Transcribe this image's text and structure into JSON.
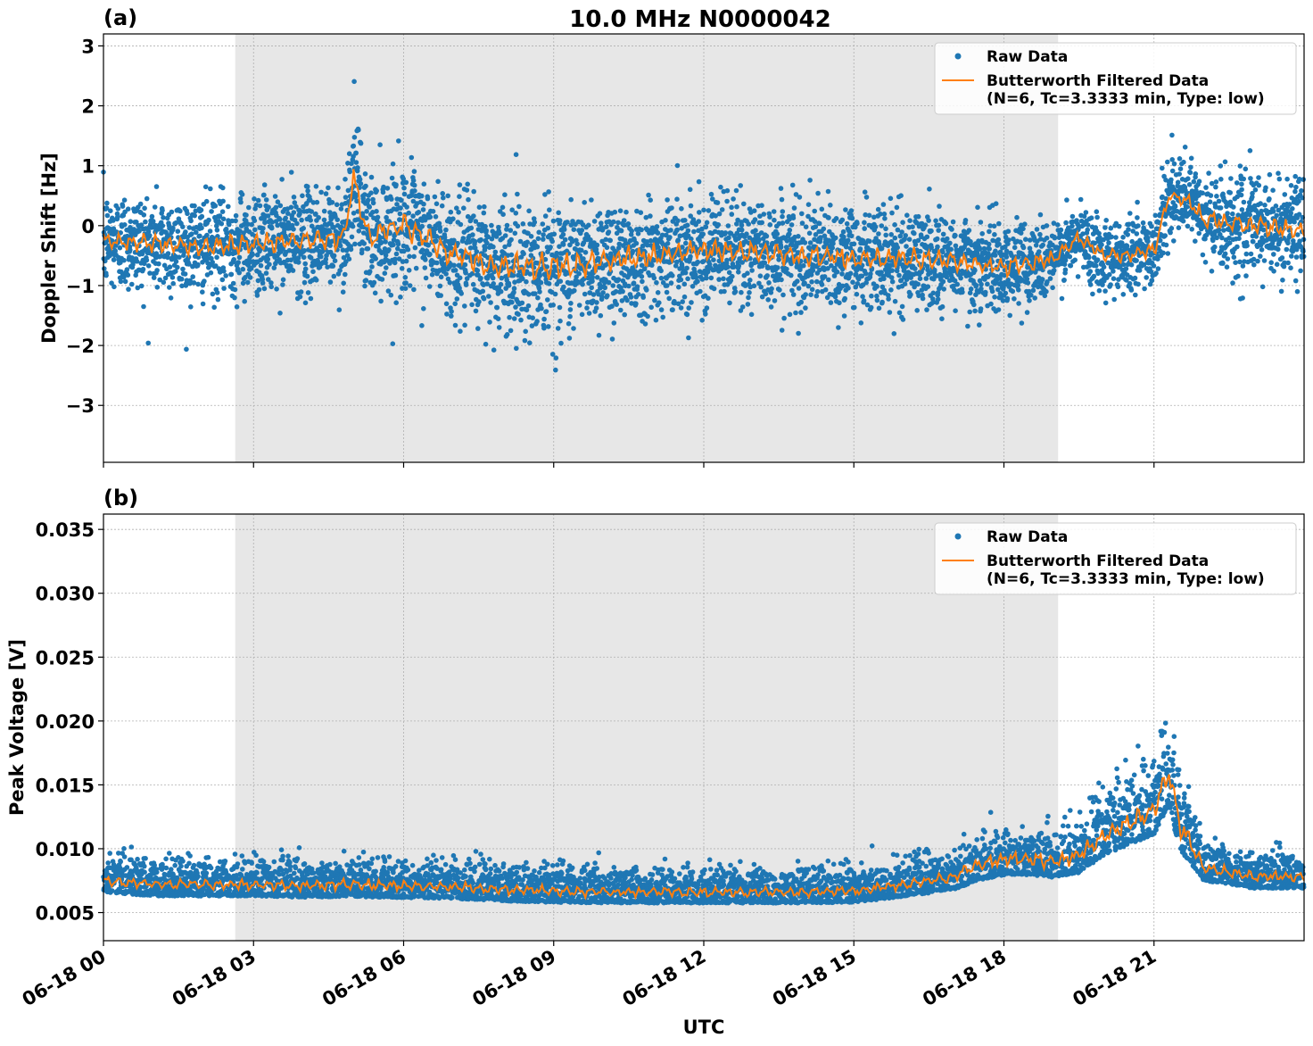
{
  "figure": {
    "title": "10.0 MHz N0000042",
    "xlabel": "UTC"
  },
  "chart_data": [
    {
      "type": "scatter",
      "panel_label": "(a)",
      "ylabel": "Doppler Shift [Hz]",
      "xlim": [
        "06-18 00:00",
        "06-19 00:00"
      ],
      "ylim": [
        -3.95,
        3.2
      ],
      "yticks": [
        -3,
        -2,
        -1,
        0,
        1,
        2,
        3
      ],
      "ytick_labels": [
        "−3",
        "−2",
        "−1",
        "0",
        "1",
        "2",
        "3"
      ],
      "grid": true,
      "legend_position": "top-right",
      "shaded_region": [
        "06-18 02:38",
        "06-18 19:05"
      ],
      "series": [
        {
          "name": "Raw Data",
          "kind": "points",
          "color": "#1f77b4",
          "x_hours": [
            0,
            1,
            2,
            3,
            4,
            4.8,
            5.0,
            5.3,
            6,
            7,
            8,
            9,
            10,
            11,
            12,
            13,
            14,
            15,
            16,
            17,
            18,
            19,
            19.5,
            20,
            20.5,
            21,
            21.3,
            21.7,
            22,
            23,
            24
          ],
          "center": [
            -0.25,
            -0.3,
            -0.35,
            -0.3,
            -0.25,
            -0.2,
            0.8,
            -0.2,
            0.0,
            -0.5,
            -0.7,
            -0.7,
            -0.6,
            -0.5,
            -0.4,
            -0.45,
            -0.5,
            -0.55,
            -0.55,
            -0.6,
            -0.7,
            -0.55,
            -0.2,
            -0.5,
            -0.5,
            -0.4,
            0.5,
            0.4,
            0.1,
            0.0,
            -0.1
          ],
          "spread": [
            0.75,
            0.75,
            0.75,
            0.75,
            0.75,
            0.8,
            1.0,
            0.9,
            0.9,
            0.9,
            1.0,
            1.0,
            0.9,
            0.85,
            0.8,
            0.8,
            0.8,
            0.8,
            0.75,
            0.75,
            0.65,
            0.55,
            0.5,
            0.55,
            0.6,
            0.6,
            0.5,
            0.6,
            0.7,
            0.75,
            0.75
          ]
        },
        {
          "name": "Butterworth Filtered Data\n(N=6, Tc=3.3333 min, Type: low)",
          "kind": "line",
          "color": "#ff7f0e",
          "x_hours": [
            0,
            1,
            2,
            3,
            4,
            4.8,
            5.0,
            5.3,
            6,
            7,
            8,
            9,
            10,
            11,
            12,
            13,
            14,
            15,
            16,
            17,
            18,
            19,
            19.5,
            20,
            20.5,
            21,
            21.3,
            21.7,
            22,
            23,
            24
          ],
          "values": [
            -0.25,
            -0.3,
            -0.35,
            -0.3,
            -0.25,
            -0.2,
            0.8,
            -0.2,
            0.0,
            -0.5,
            -0.7,
            -0.7,
            -0.6,
            -0.5,
            -0.4,
            -0.45,
            -0.5,
            -0.55,
            -0.55,
            -0.6,
            -0.7,
            -0.55,
            -0.2,
            -0.5,
            -0.5,
            -0.4,
            0.5,
            0.4,
            0.1,
            0.0,
            -0.1
          ]
        }
      ]
    },
    {
      "type": "scatter",
      "panel_label": "(b)",
      "ylabel": "Peak Voltage [V]",
      "xlim": [
        "06-18 00:00",
        "06-19 00:00"
      ],
      "ylim": [
        0.0028,
        0.0362
      ],
      "yticks": [
        0.005,
        0.01,
        0.015,
        0.02,
        0.025,
        0.03,
        0.035
      ],
      "ytick_labels": [
        "0.005",
        "0.010",
        "0.015",
        "0.020",
        "0.025",
        "0.030",
        "0.035"
      ],
      "grid": true,
      "legend_position": "top-right",
      "shaded_region": [
        "06-18 02:38",
        "06-18 19:05"
      ],
      "series": [
        {
          "name": "Raw Data",
          "kind": "points",
          "color": "#1f77b4",
          "x_hours": [
            0,
            1,
            2,
            3,
            4,
            5,
            6,
            7,
            8,
            9,
            10,
            11,
            12,
            13,
            14,
            15,
            16,
            17,
            17.5,
            18,
            18.5,
            19,
            19.5,
            20,
            20.5,
            21,
            21.3,
            21.5,
            22,
            23,
            24
          ],
          "center": [
            0.0075,
            0.0072,
            0.0072,
            0.0072,
            0.0071,
            0.0072,
            0.0071,
            0.007,
            0.0068,
            0.0067,
            0.0066,
            0.0066,
            0.0066,
            0.0066,
            0.0066,
            0.0067,
            0.0072,
            0.0078,
            0.0088,
            0.0092,
            0.0092,
            0.009,
            0.0095,
            0.011,
            0.012,
            0.013,
            0.016,
            0.012,
            0.0085,
            0.0078,
            0.0078
          ],
          "spread": [
            0.0018,
            0.0018,
            0.0018,
            0.0018,
            0.0018,
            0.0019,
            0.0019,
            0.0018,
            0.0018,
            0.0018,
            0.0017,
            0.0017,
            0.0017,
            0.0017,
            0.0017,
            0.0018,
            0.0019,
            0.002,
            0.0025,
            0.0025,
            0.0025,
            0.0025,
            0.0028,
            0.003,
            0.0033,
            0.0038,
            0.005,
            0.004,
            0.002,
            0.0018,
            0.0018
          ]
        },
        {
          "name": "Butterworth Filtered Data\n(N=6, Tc=3.3333 min, Type: low)",
          "kind": "line",
          "color": "#ff7f0e",
          "x_hours": [
            0,
            1,
            2,
            3,
            4,
            5,
            6,
            7,
            8,
            9,
            10,
            11,
            12,
            13,
            14,
            15,
            16,
            17,
            17.5,
            18,
            18.5,
            19,
            19.5,
            20,
            20.5,
            21,
            21.3,
            21.5,
            22,
            23,
            24
          ],
          "values": [
            0.0075,
            0.0072,
            0.0072,
            0.0072,
            0.0071,
            0.0072,
            0.0071,
            0.007,
            0.0068,
            0.0067,
            0.0066,
            0.0066,
            0.0066,
            0.0066,
            0.0066,
            0.0067,
            0.0072,
            0.0078,
            0.0088,
            0.0092,
            0.0092,
            0.009,
            0.0095,
            0.011,
            0.012,
            0.013,
            0.016,
            0.012,
            0.0085,
            0.0078,
            0.0078
          ]
        }
      ]
    }
  ],
  "x_axis": {
    "tick_hours": [
      0,
      3,
      6,
      9,
      12,
      15,
      18,
      21
    ],
    "tick_labels": [
      "06-18 00",
      "06-18 03",
      "06-18 06",
      "06-18 09",
      "06-18 12",
      "06-18 15",
      "06-18 18",
      "06-18 21"
    ]
  },
  "colors": {
    "raw": "#1f77b4",
    "filtered": "#ff7f0e",
    "shade": "#e7e7e7",
    "grid": "#b0b0b0"
  }
}
